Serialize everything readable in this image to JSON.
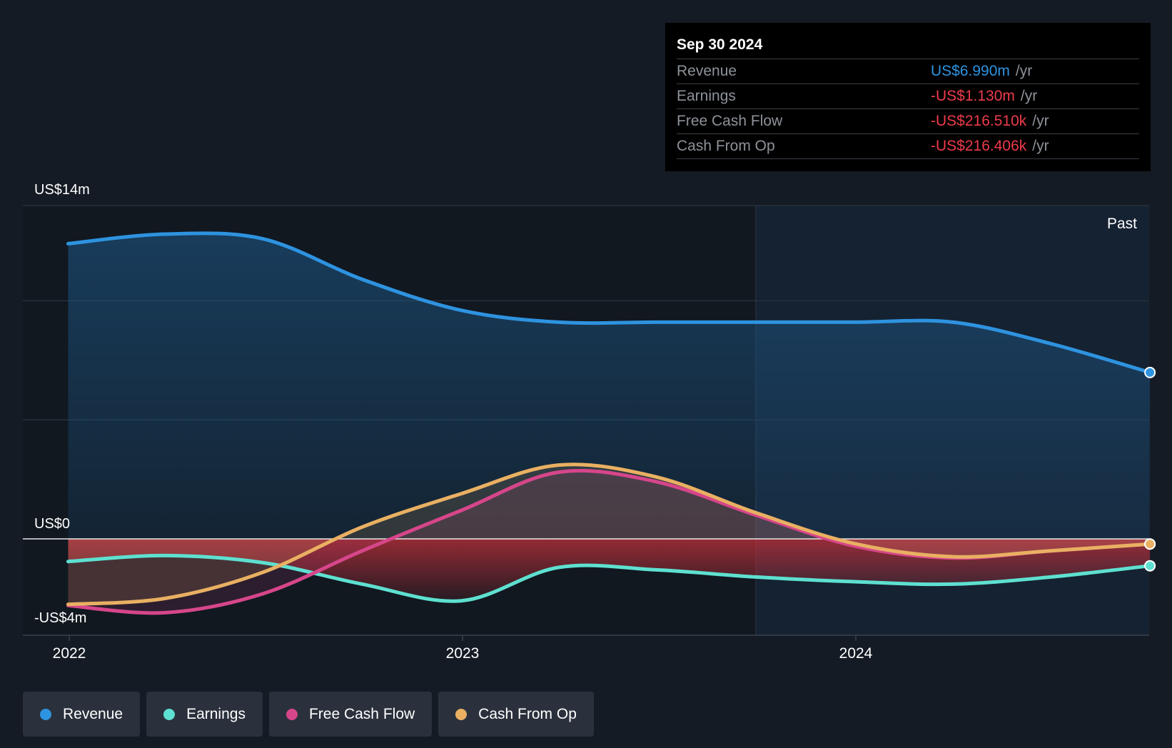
{
  "chart_data": {
    "type": "line",
    "title": "",
    "xlabel": "",
    "ylabel": "",
    "y_tick_labels": [
      "US$14m",
      "US$0",
      "-US$4m"
    ],
    "x_tick_labels": [
      "2022",
      "2023",
      "2024"
    ],
    "ylim": [
      -4,
      14
    ],
    "region_label": "Past",
    "grid": true,
    "legend_position": "bottom-left",
    "series": [
      {
        "name": "Revenue",
        "color": "#2e93e0",
        "points": [
          [
            "2021-12-31",
            12.4
          ],
          [
            "2022-03-31",
            12.8
          ],
          [
            "2022-06-30",
            12.6
          ],
          [
            "2022-09-30",
            10.9
          ],
          [
            "2022-12-31",
            9.6
          ],
          [
            "2023-03-31",
            9.1
          ],
          [
            "2023-06-30",
            9.1
          ],
          [
            "2023-09-30",
            9.1
          ],
          [
            "2023-12-31",
            9.1
          ],
          [
            "2024-03-31",
            9.1
          ],
          [
            "2024-06-30",
            8.2
          ],
          [
            "2024-09-30",
            6.99
          ]
        ]
      },
      {
        "name": "Earnings",
        "color": "#5ee0d0",
        "points": [
          [
            "2021-12-31",
            -0.95
          ],
          [
            "2022-03-31",
            -0.7
          ],
          [
            "2022-06-30",
            -1.0
          ],
          [
            "2022-09-30",
            -1.9
          ],
          [
            "2022-12-31",
            -2.6
          ],
          [
            "2023-03-31",
            -1.2
          ],
          [
            "2023-06-30",
            -1.3
          ],
          [
            "2023-09-30",
            -1.6
          ],
          [
            "2023-12-31",
            -1.8
          ],
          [
            "2024-03-31",
            -1.9
          ],
          [
            "2024-06-30",
            -1.6
          ],
          [
            "2024-09-30",
            -1.13
          ]
        ]
      },
      {
        "name": "Free Cash Flow",
        "color": "#d6468a",
        "points": [
          [
            "2021-12-31",
            -2.8
          ],
          [
            "2022-03-31",
            -3.1
          ],
          [
            "2022-06-30",
            -2.3
          ],
          [
            "2022-09-30",
            -0.5
          ],
          [
            "2022-12-31",
            1.2
          ],
          [
            "2023-03-31",
            2.8
          ],
          [
            "2023-06-30",
            2.4
          ],
          [
            "2023-09-30",
            1.0
          ],
          [
            "2023-12-31",
            -0.3
          ],
          [
            "2024-03-31",
            -0.8
          ],
          [
            "2024-06-30",
            -0.5
          ],
          [
            "2024-09-30",
            -0.2165
          ]
        ]
      },
      {
        "name": "Cash From Op",
        "color": "#e9b062",
        "points": [
          [
            "2021-12-31",
            -2.75
          ],
          [
            "2022-03-31",
            -2.5
          ],
          [
            "2022-06-30",
            -1.4
          ],
          [
            "2022-09-30",
            0.5
          ],
          [
            "2022-12-31",
            1.9
          ],
          [
            "2023-03-31",
            3.1
          ],
          [
            "2023-06-30",
            2.6
          ],
          [
            "2023-09-30",
            1.1
          ],
          [
            "2023-12-31",
            -0.2
          ],
          [
            "2024-03-31",
            -0.75
          ],
          [
            "2024-06-30",
            -0.5
          ],
          [
            "2024-09-30",
            -0.2164
          ]
        ]
      }
    ]
  },
  "tooltip": {
    "date": "Sep 30 2024",
    "unit": "/yr",
    "rows": [
      {
        "label": "Revenue",
        "value": "US$6.990m",
        "color": "#2e93e0"
      },
      {
        "label": "Earnings",
        "value": "-US$1.130m",
        "color": "#ec3b4b"
      },
      {
        "label": "Free Cash Flow",
        "value": "-US$216.510k",
        "color": "#ec3b4b"
      },
      {
        "label": "Cash From Op",
        "value": "-US$216.406k",
        "color": "#ec3b4b"
      }
    ]
  },
  "legend": [
    {
      "label": "Revenue",
      "color": "#2e93e0"
    },
    {
      "label": "Earnings",
      "color": "#5ee0d0"
    },
    {
      "label": "Free Cash Flow",
      "color": "#d6468a"
    },
    {
      "label": "Cash From Op",
      "color": "#e9b062"
    }
  ]
}
